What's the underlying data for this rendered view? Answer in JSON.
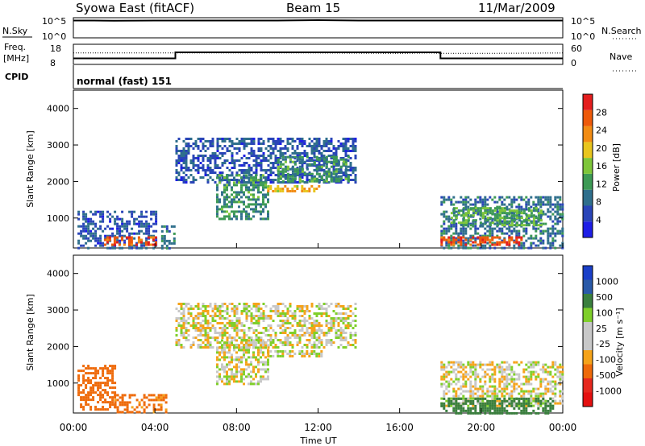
{
  "header": {
    "station": "Syowa East (fitACF)",
    "beam": "Beam 15",
    "date": "11/Mar/2009"
  },
  "strip_labels": {
    "nsky": "N.Sky",
    "nsky_ticks": [
      "10^5",
      "10^0"
    ],
    "nsearch": "N.Search",
    "freq": "Freq.",
    "freq_unit": "[MHz]",
    "freq_ticks": [
      "18",
      "8"
    ],
    "nave_ticks": [
      "60",
      "0"
    ],
    "nave": "Nave",
    "cpid": "CPID",
    "cpid_value": "normal (fast) 151"
  },
  "colors": {
    "power": [
      "#1e1ee6",
      "#2a45b8",
      "#2f6f8c",
      "#3d9a55",
      "#7ec63a",
      "#e8c51e",
      "#f28c14",
      "#ee5a0a",
      "#e41e1e"
    ],
    "velocity": [
      "#1a3fc8",
      "#2a5aa8",
      "#3a7f3e",
      "#7fcf2a",
      "#c8c8c8",
      "#c8c8c8",
      "#f5a31a",
      "#ee6a0a",
      "#e6281e",
      "#e41010"
    ]
  },
  "chart_data": [
    {
      "type": "line",
      "panel": "N.Sky / N.Search",
      "ylabel": "N.Sky",
      "y_right_label": "N.Search",
      "yscale": "log",
      "ylim": [
        1,
        100000
      ],
      "y_ticks": [
        "10^0",
        "10^5"
      ],
      "x_ticks": [
        "00:00",
        "04:00",
        "08:00",
        "12:00",
        "16:00",
        "20:00",
        "00:00"
      ],
      "series": [
        {
          "name": "N.Sky",
          "x": [
            0,
            1,
            2,
            4,
            6,
            8,
            10,
            12,
            14,
            16,
            18,
            20,
            22,
            24
          ],
          "y": [
            20000,
            20000,
            18000,
            20000,
            20000,
            20000,
            20000,
            25000,
            20000,
            20000,
            20000,
            20000,
            20000,
            20000
          ]
        }
      ]
    },
    {
      "type": "line",
      "panel": "Freq. / Nave",
      "ylabel": "Freq. [MHz]",
      "y_right_label": "Nave",
      "ylim": [
        8,
        18
      ],
      "y2lim": [
        0,
        60
      ],
      "y_ticks": [
        "18",
        "8"
      ],
      "y2_ticks": [
        "60",
        "0"
      ],
      "series": [
        {
          "name": "Freq.",
          "x": [
            0,
            5,
            5,
            18,
            18,
            24
          ],
          "y": [
            11,
            11,
            14,
            14,
            11,
            11
          ]
        },
        {
          "name": "Nave",
          "x": [
            0,
            6,
            12,
            16,
            17.5,
            18,
            20,
            24
          ],
          "y": [
            34,
            34,
            34,
            33,
            34,
            33,
            33,
            34
          ]
        }
      ]
    },
    {
      "type": "heatmap",
      "panel": "power",
      "xlabel": "",
      "ylabel": "Slant Range [km]",
      "colorbar_label": "Power [dB]",
      "colorbar_ticks": [
        "28",
        "24",
        "20",
        "16",
        "12",
        "8",
        "4"
      ],
      "xlim": [
        0,
        24
      ],
      "ylim": [
        180,
        4500
      ],
      "y_ticks": [
        "1000",
        "2000",
        "3000",
        "4000"
      ],
      "regions": [
        {
          "x0": 0.2,
          "x1": 4.0,
          "y0": 200,
          "y1": 1200,
          "level": 8
        },
        {
          "x0": 1.5,
          "x1": 4.0,
          "y0": 250,
          "y1": 500,
          "level": 26
        },
        {
          "x0": 4.3,
          "x1": 5.0,
          "y0": 200,
          "y1": 800,
          "level": 10
        },
        {
          "x0": 5.0,
          "x1": 13.8,
          "y0": 2000,
          "y1": 3200,
          "level": 8
        },
        {
          "x0": 7.0,
          "x1": 9.5,
          "y0": 1000,
          "y1": 2200,
          "level": 12
        },
        {
          "x0": 9.5,
          "x1": 12.2,
          "y0": 1750,
          "y1": 1900,
          "level": 20
        },
        {
          "x0": 10.0,
          "x1": 13.5,
          "y0": 2000,
          "y1": 2700,
          "level": 12
        },
        {
          "x0": 18.0,
          "x1": 24.0,
          "y0": 200,
          "y1": 1600,
          "level": 10
        },
        {
          "x0": 18.0,
          "x1": 22.0,
          "y0": 250,
          "y1": 500,
          "level": 26
        },
        {
          "x0": 18.5,
          "x1": 23.0,
          "y0": 800,
          "y1": 1300,
          "level": 14
        }
      ]
    },
    {
      "type": "heatmap",
      "panel": "velocity",
      "xlabel": "Time UT",
      "ylabel": "Slant Range [km]",
      "colorbar_label": "Velocity [m s⁻¹]",
      "colorbar_ticks": [
        "1000",
        "500",
        "100",
        "25",
        "-25",
        "-100",
        "-500",
        "-1000"
      ],
      "xlim": [
        0,
        24
      ],
      "ylim": [
        180,
        4500
      ],
      "x_ticks": [
        "00:00",
        "04:00",
        "08:00",
        "12:00",
        "16:00",
        "20:00",
        "00:00"
      ],
      "y_ticks": [
        "1000",
        "2000",
        "3000",
        "4000"
      ],
      "regions": [
        {
          "x0": 0.2,
          "x1": 2.0,
          "y0": 300,
          "y1": 1500,
          "velocity": -200
        },
        {
          "x0": 2.0,
          "x1": 4.5,
          "y0": 200,
          "y1": 700,
          "velocity": -150
        },
        {
          "x0": 5.0,
          "x1": 13.8,
          "y0": 2000,
          "y1": 3200,
          "velocity": 0
        },
        {
          "x0": 7.0,
          "x1": 9.5,
          "y0": 1000,
          "y1": 2200,
          "velocity": 0
        },
        {
          "x0": 9.5,
          "x1": 12.2,
          "y0": 1750,
          "y1": 1900,
          "velocity": 0
        },
        {
          "x0": 18.0,
          "x1": 24.0,
          "y0": 400,
          "y1": 1600,
          "velocity": 0
        },
        {
          "x0": 18.0,
          "x1": 23.5,
          "y0": 200,
          "y1": 600,
          "velocity": 400
        }
      ]
    }
  ]
}
